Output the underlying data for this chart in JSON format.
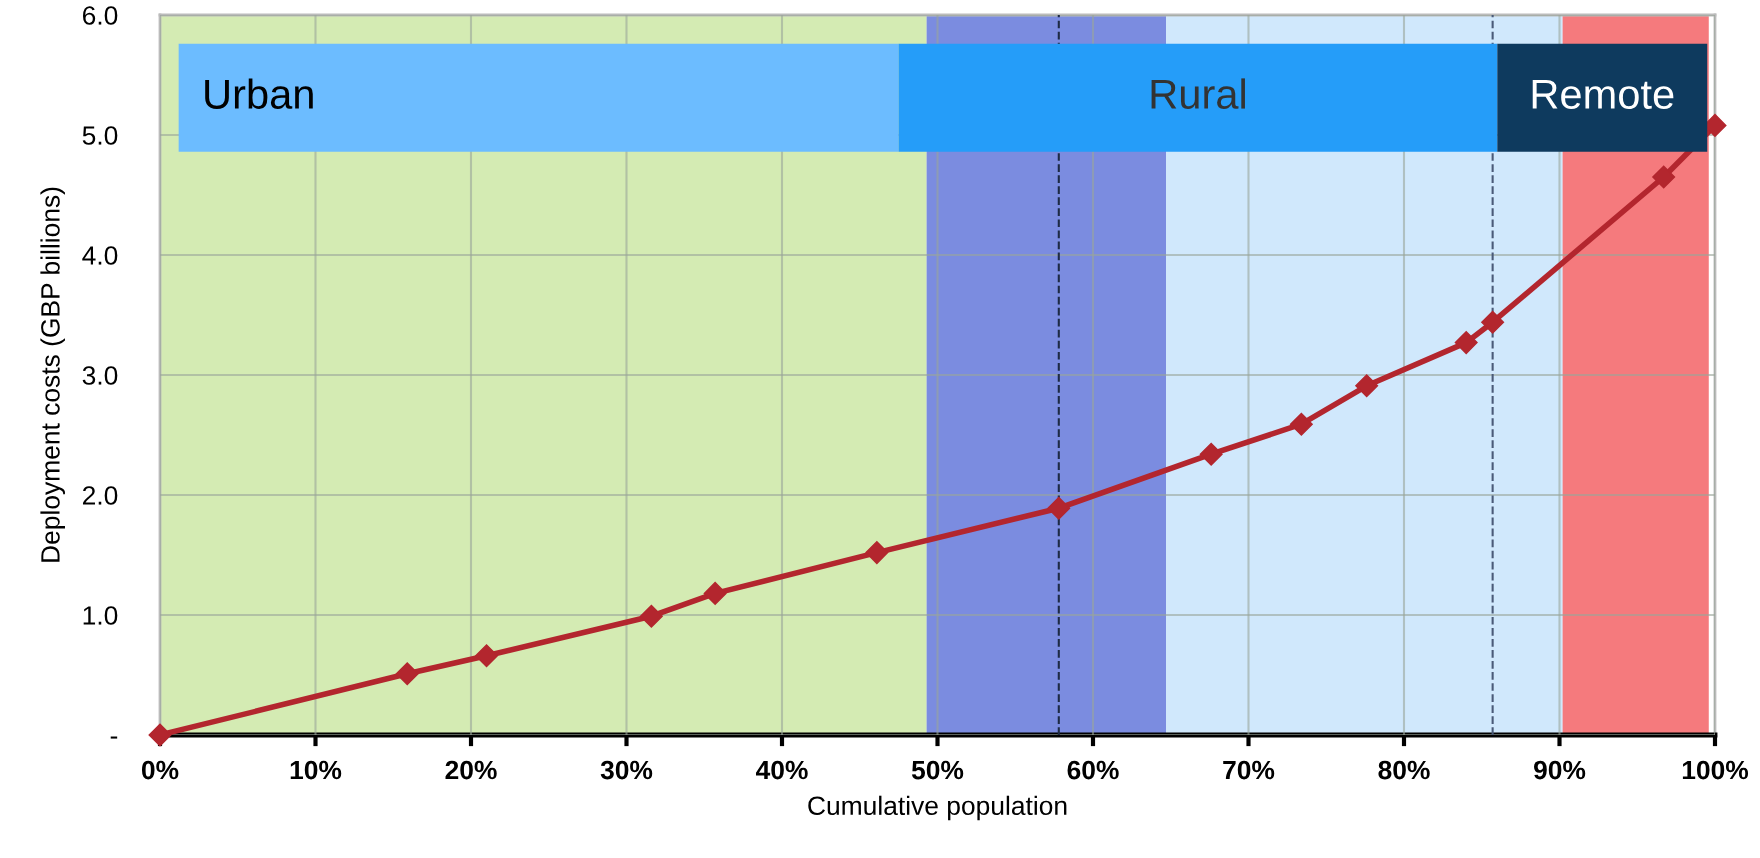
{
  "chart_data": {
    "type": "line",
    "xlabel": "Cumulative population",
    "ylabel": "Deployment costs (GBP billions)",
    "x": [
      0,
      15.9,
      21,
      31.6,
      35.7,
      46.1,
      57.8,
      67.6,
      73.4,
      77.6,
      84,
      85.7,
      96.7,
      100
    ],
    "series": [
      {
        "color": "#b3262e",
        "values": [
          0,
          0.51,
          0.66,
          0.99,
          1.18,
          1.52,
          1.89,
          2.34,
          2.59,
          2.91,
          3.27,
          3.44,
          4.65,
          5.08
        ]
      }
    ],
    "marker": "diamond",
    "line_style": "solid",
    "xlim": [
      0,
      100
    ],
    "xticks": [
      {
        "value": 0,
        "label": "0%"
      },
      {
        "value": 10,
        "label": "10%"
      },
      {
        "value": 20,
        "label": "20%"
      },
      {
        "value": 30,
        "label": "30%"
      },
      {
        "value": 40,
        "label": "40%"
      },
      {
        "value": 50,
        "label": "50%"
      },
      {
        "value": 60,
        "label": "60%"
      },
      {
        "value": 70,
        "label": "70%"
      },
      {
        "value": 80,
        "label": "80%"
      },
      {
        "value": 90,
        "label": "90%"
      },
      {
        "value": 100,
        "label": "100%"
      }
    ],
    "ylim": [
      0,
      6
    ],
    "yticks": [
      {
        "value": 0,
        "label": "-"
      },
      {
        "value": 1,
        "label": "1.0"
      },
      {
        "value": 2,
        "label": "2.0"
      },
      {
        "value": 3,
        "label": "3.0"
      },
      {
        "value": 4,
        "label": "4.0"
      },
      {
        "value": 5,
        "label": "5.0"
      },
      {
        "value": 6,
        "label": "6.0"
      }
    ],
    "grid": true,
    "bands": [
      {
        "axis": "x",
        "from": 0,
        "to": 49.3,
        "color": "#c9e6a0"
      },
      {
        "axis": "x",
        "from": 49.3,
        "to": 64.7,
        "color": "#5a6fd8"
      },
      {
        "axis": "x",
        "from": 64.7,
        "to": 90.2,
        "color": "#c4e2fb"
      },
      {
        "axis": "x",
        "from": 90.2,
        "to": 99.6,
        "color": "#f2595c"
      }
    ],
    "ref_lines": [
      {
        "axis": "x",
        "value": 57.8,
        "color": "#1e2a44",
        "line_style": "dashed"
      },
      {
        "axis": "x",
        "value": 85.7,
        "color": "#4a5a78",
        "line_style": "dashed"
      }
    ],
    "annotations": [
      "Urban",
      "Rural",
      "Remote"
    ]
  }
}
